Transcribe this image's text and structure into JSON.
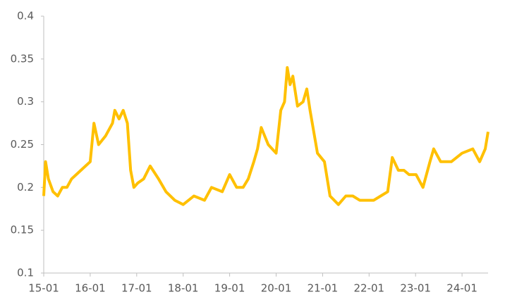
{
  "chart_data": {
    "type": "line",
    "x": [
      15.0,
      15.04,
      15.1,
      15.2,
      15.3,
      15.4,
      15.5,
      15.6,
      15.7,
      15.8,
      15.9,
      16.0,
      16.08,
      16.18,
      16.33,
      16.48,
      16.53,
      16.62,
      16.71,
      16.8,
      16.87,
      16.94,
      17.02,
      17.15,
      17.29,
      17.47,
      17.63,
      17.82,
      18.0,
      18.23,
      18.46,
      18.61,
      18.84,
      19.0,
      19.15,
      19.29,
      19.4,
      19.52,
      19.6,
      19.68,
      19.83,
      20.0,
      20.1,
      20.18,
      20.24,
      20.3,
      20.36,
      20.46,
      20.58,
      20.66,
      20.73,
      20.89,
      21.04,
      21.16,
      21.34,
      21.5,
      21.65,
      21.8,
      21.95,
      22.1,
      22.25,
      22.4,
      22.5,
      22.63,
      22.75,
      22.86,
      23.01,
      23.16,
      23.31,
      23.39,
      23.54,
      23.77,
      24.0,
      24.23,
      24.38,
      24.5,
      24.56
    ],
    "series": [
      {
        "color": "#ffc000",
        "values": [
          0.19,
          0.23,
          0.21,
          0.195,
          0.19,
          0.2,
          0.2,
          0.21,
          0.215,
          0.22,
          0.225,
          0.23,
          0.275,
          0.25,
          0.26,
          0.275,
          0.29,
          0.28,
          0.29,
          0.275,
          0.22,
          0.2,
          0.205,
          0.21,
          0.225,
          0.21,
          0.195,
          0.185,
          0.18,
          0.19,
          0.185,
          0.2,
          0.195,
          0.215,
          0.2,
          0.2,
          0.21,
          0.23,
          0.245,
          0.27,
          0.25,
          0.24,
          0.29,
          0.3,
          0.34,
          0.32,
          0.33,
          0.295,
          0.3,
          0.315,
          0.29,
          0.24,
          0.23,
          0.19,
          0.18,
          0.19,
          0.19,
          0.185,
          0.185,
          0.185,
          0.19,
          0.195,
          0.235,
          0.22,
          0.22,
          0.215,
          0.215,
          0.2,
          0.23,
          0.245,
          0.23,
          0.23,
          0.24,
          0.245,
          0.23,
          0.245,
          0.265
        ]
      }
    ],
    "xlim": [
      15,
      24.56
    ],
    "xticks": [
      {
        "value": 15,
        "label": "15-01"
      },
      {
        "value": 16,
        "label": "16-01"
      },
      {
        "value": 17,
        "label": "17-01"
      },
      {
        "value": 18,
        "label": "18-01"
      },
      {
        "value": 19,
        "label": "19-01"
      },
      {
        "value": 20,
        "label": "20-01"
      },
      {
        "value": 21,
        "label": "21-01"
      },
      {
        "value": 22,
        "label": "22-01"
      },
      {
        "value": 23,
        "label": "23-01"
      },
      {
        "value": 24,
        "label": "24-01"
      }
    ],
    "ylim": [
      0.1,
      0.4
    ],
    "yticks": [
      0.1,
      0.15,
      0.2,
      0.25,
      0.3,
      0.35,
      0.4
    ],
    "grid": false
  }
}
